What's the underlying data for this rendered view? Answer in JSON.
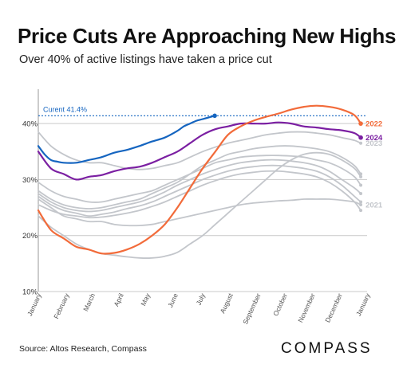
{
  "header": {
    "title": "Price Cuts Are Approaching New Highs",
    "subtitle": "Over 40% of active listings have taken a price cut"
  },
  "footer": {
    "source": "Source: Altos Research, Compass",
    "logo": "COMPASS"
  },
  "chart_data": {
    "type": "line",
    "title": "Price Cuts Are Approaching New Highs",
    "subtitle": "Over 40% of active listings have taken a price cut",
    "xlabel": "",
    "ylabel": "",
    "x_unit": "week of year",
    "xlim": [
      0,
      52
    ],
    "ylim": [
      10,
      45
    ],
    "y_ticks": [
      "10%",
      "20%",
      "30%",
      "40%"
    ],
    "y_tick_values": [
      10,
      20,
      30,
      40
    ],
    "x_ticks": [
      "January",
      "February",
      "March",
      "April",
      "May",
      "June",
      "July",
      "August",
      "September",
      "October",
      "November",
      "December",
      "January"
    ],
    "x_tick_values": [
      0,
      4.4,
      8.5,
      13,
      17.2,
      21.6,
      25.9,
      30.3,
      34.7,
      38.9,
      43.3,
      47.6,
      52
    ],
    "grid": "horizontal",
    "reference_line": {
      "label": "Curent 41.4%",
      "value": 41.4,
      "color": "#1565c0"
    },
    "series": [
      {
        "name": "2024",
        "color": "#7b1fa2",
        "labeled": true,
        "x": [
          0,
          2,
          4,
          6,
          8,
          10,
          12,
          14,
          16,
          18,
          20,
          22,
          24,
          26,
          28,
          30,
          32,
          34,
          36,
          38,
          40,
          42,
          44,
          46,
          48,
          50,
          51
        ],
        "y": [
          35,
          32,
          31,
          30,
          30.5,
          30.8,
          31.5,
          32,
          32.3,
          33,
          34,
          35,
          36.5,
          38,
          39,
          39.5,
          40,
          40,
          40,
          40.2,
          40,
          39.5,
          39.3,
          39,
          38.8,
          38.3,
          37.5
        ]
      },
      {
        "name": "2022",
        "color": "#f26b3a",
        "labeled": true,
        "x": [
          0,
          2,
          4,
          6,
          8,
          10,
          12,
          14,
          16,
          18,
          20,
          22,
          24,
          26,
          28,
          30,
          32,
          34,
          36,
          38,
          40,
          42,
          44,
          46,
          48,
          50,
          51
        ],
        "y": [
          24.5,
          21,
          19.5,
          18,
          17.5,
          16.8,
          16.9,
          17.5,
          18.5,
          20,
          22,
          25,
          28.5,
          32,
          35,
          38,
          39.5,
          40.5,
          41.2,
          41.8,
          42.5,
          43,
          43.2,
          43,
          42.5,
          41.5,
          40
        ]
      },
      {
        "name": "2023",
        "color": "#c3c6cb",
        "labeled": true,
        "x": [
          0,
          2,
          4,
          6,
          8,
          10,
          12,
          14,
          16,
          18,
          20,
          22,
          24,
          26,
          28,
          30,
          32,
          34,
          36,
          38,
          40,
          42,
          44,
          46,
          48,
          50,
          51
        ],
        "y": [
          38.5,
          36,
          34.5,
          33.5,
          33,
          33,
          32.5,
          32,
          31.8,
          32,
          32.5,
          33,
          34,
          35,
          35.8,
          36.5,
          37,
          37.5,
          38,
          38.3,
          38.5,
          38.5,
          38.3,
          38,
          37.5,
          37,
          36.5
        ]
      },
      {
        "name": "2021",
        "color": "#c3c6cb",
        "labeled": true,
        "x": [
          0,
          2,
          4,
          6,
          8,
          10,
          12,
          14,
          16,
          18,
          20,
          22,
          24,
          26,
          28,
          30,
          32,
          34,
          36,
          38,
          40,
          42,
          44,
          46,
          48,
          50,
          51
        ],
        "y": [
          26.5,
          25,
          23.5,
          23,
          22.5,
          22.5,
          22,
          21.8,
          21.8,
          22,
          22.5,
          23,
          23.5,
          24,
          24.5,
          25,
          25.5,
          25.8,
          26,
          26.2,
          26.3,
          26.5,
          26.5,
          26.5,
          26.3,
          26,
          25.5
        ]
      },
      {
        "name": "",
        "color": "#1565c0",
        "labeled": false,
        "x": [
          0,
          1,
          2,
          3,
          4,
          6,
          8,
          10,
          12,
          14,
          16,
          18,
          20,
          22,
          23,
          24,
          25,
          26,
          27.9
        ],
        "y": [
          36,
          34.5,
          33.5,
          33.2,
          33,
          33,
          33.5,
          34,
          34.8,
          35.3,
          36,
          36.8,
          37.5,
          38.7,
          39.5,
          40,
          40.5,
          40.8,
          41.4
        ]
      },
      {
        "name": "",
        "color": "#c3c6cb",
        "labeled": false,
        "x": [
          0,
          2,
          4,
          6,
          8,
          10,
          12,
          14,
          16,
          18,
          20,
          22,
          24,
          26,
          28,
          30,
          32,
          34,
          36,
          38,
          40,
          42,
          44,
          46,
          48,
          50,
          51
        ],
        "y": [
          23.5,
          21.5,
          20,
          18.5,
          17.5,
          16.8,
          16.5,
          16.2,
          16,
          16,
          16.3,
          17,
          18.5,
          20,
          22,
          24,
          26,
          28,
          30,
          32,
          33.5,
          34.5,
          34.8,
          34.5,
          33.5,
          32,
          30.5
        ]
      },
      {
        "name": "",
        "color": "#c3c6cb",
        "labeled": false,
        "x": [
          0,
          2,
          4,
          6,
          8,
          10,
          12,
          14,
          16,
          18,
          20,
          22,
          24,
          26,
          28,
          30,
          32,
          34,
          36,
          38,
          40,
          42,
          44,
          46,
          48,
          50,
          51
        ],
        "y": [
          28,
          26.5,
          25.5,
          25,
          24.8,
          25,
          25.5,
          26,
          26.5,
          27.5,
          28.5,
          29.5,
          31,
          32.5,
          33.5,
          34.5,
          35,
          35.5,
          35.8,
          36,
          36,
          35.8,
          35.5,
          35,
          34,
          32.5,
          31
        ]
      },
      {
        "name": "",
        "color": "#c3c6cb",
        "labeled": false,
        "x": [
          0,
          2,
          4,
          6,
          8,
          10,
          12,
          14,
          16,
          18,
          20,
          22,
          24,
          26,
          28,
          30,
          32,
          34,
          36,
          38,
          40,
          42,
          44,
          46,
          48,
          50,
          51
        ],
        "y": [
          29.5,
          28,
          27,
          26.5,
          26,
          26,
          26.5,
          27,
          27.5,
          28,
          29,
          30,
          31,
          32,
          33,
          33.5,
          34,
          34.2,
          34.3,
          34.3,
          34.2,
          34,
          33.5,
          33,
          32,
          30.5,
          29
        ]
      },
      {
        "name": "",
        "color": "#c3c6cb",
        "labeled": false,
        "x": [
          0,
          2,
          4,
          6,
          8,
          10,
          12,
          14,
          16,
          18,
          20,
          22,
          24,
          26,
          28,
          30,
          32,
          34,
          36,
          38,
          40,
          42,
          44,
          46,
          48,
          50,
          51
        ],
        "y": [
          27.5,
          26,
          25,
          24.5,
          24.3,
          24.5,
          25,
          25.5,
          26,
          26.8,
          27.8,
          29,
          30,
          31,
          31.8,
          32.5,
          33,
          33.3,
          33.5,
          33.5,
          33.3,
          33,
          32.5,
          31.5,
          30,
          28.5,
          27.5
        ]
      },
      {
        "name": "",
        "color": "#c3c6cb",
        "labeled": false,
        "x": [
          0,
          2,
          4,
          6,
          8,
          10,
          12,
          14,
          16,
          18,
          20,
          22,
          24,
          26,
          28,
          30,
          32,
          34,
          36,
          38,
          40,
          42,
          44,
          46,
          48,
          50,
          51
        ],
        "y": [
          27,
          25.5,
          24.5,
          24,
          23.5,
          23.8,
          24.2,
          24.8,
          25.3,
          26,
          27,
          28,
          29,
          30,
          30.8,
          31.5,
          32,
          32.3,
          32.5,
          32.5,
          32.3,
          32,
          31.5,
          30.5,
          29,
          27,
          26
        ]
      },
      {
        "name": "",
        "color": "#c3c6cb",
        "labeled": false,
        "x": [
          0,
          2,
          4,
          6,
          8,
          10,
          12,
          14,
          16,
          18,
          20,
          22,
          24,
          26,
          28,
          30,
          32,
          34,
          36,
          38,
          40,
          42,
          44,
          46,
          48,
          50,
          51
        ],
        "y": [
          25.5,
          24.5,
          23.8,
          23.5,
          23.2,
          23.3,
          23.6,
          24,
          24.5,
          25.2,
          26,
          27,
          28,
          29,
          29.8,
          30.5,
          31,
          31.3,
          31.5,
          31.5,
          31.3,
          31,
          30.5,
          29.5,
          28,
          26,
          24.5
        ]
      }
    ]
  }
}
